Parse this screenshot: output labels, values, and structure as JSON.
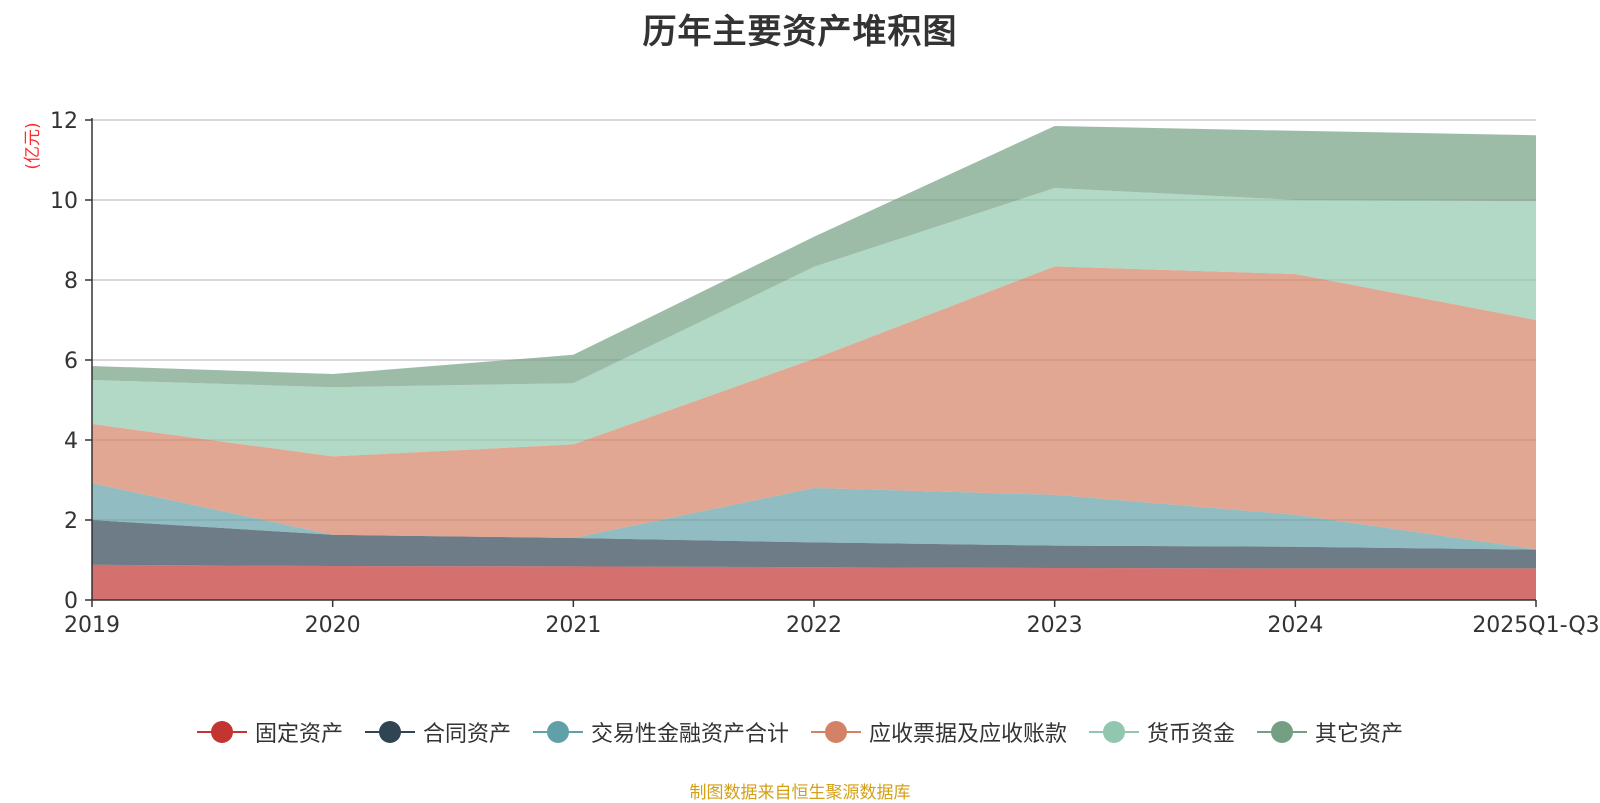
{
  "chart_data": {
    "type": "area",
    "stacked": true,
    "title": "历年主要资产堆积图",
    "ylabel": "(亿元)",
    "xlabel": "",
    "ylim": [
      0,
      12
    ],
    "yticks": [
      0,
      2,
      4,
      6,
      8,
      10,
      12
    ],
    "categories": [
      "2019",
      "2020",
      "2021",
      "2022",
      "2023",
      "2024",
      "2025Q1-Q3"
    ],
    "grid": true,
    "legend_position": "bottom",
    "series": [
      {
        "name": "固定资产",
        "color": "#c23531",
        "values": [
          0.88,
          0.85,
          0.84,
          0.82,
          0.8,
          0.79,
          0.79
        ]
      },
      {
        "name": "合同资产",
        "color": "#2f4554",
        "values": [
          1.12,
          0.78,
          0.71,
          0.62,
          0.56,
          0.54,
          0.47
        ]
      },
      {
        "name": "交易性金融资产合计",
        "color": "#61a0a8",
        "values": [
          0.92,
          0.0,
          0.0,
          1.36,
          1.27,
          0.8,
          0.01
        ]
      },
      {
        "name": "应收票据及应收账款",
        "color": "#d48265",
        "values": [
          1.48,
          1.96,
          2.34,
          3.23,
          5.71,
          6.02,
          5.73
        ]
      },
      {
        "name": "货币资金",
        "color": "#91c7ae",
        "values": [
          1.1,
          1.73,
          1.53,
          2.3,
          1.96,
          1.85,
          2.97
        ]
      },
      {
        "name": "其它资产",
        "color": "#749f83",
        "values": [
          0.35,
          0.33,
          0.71,
          0.75,
          1.55,
          1.73,
          1.65
        ]
      }
    ]
  },
  "footer": {
    "source": "制图数据来自恒生聚源数据库"
  }
}
